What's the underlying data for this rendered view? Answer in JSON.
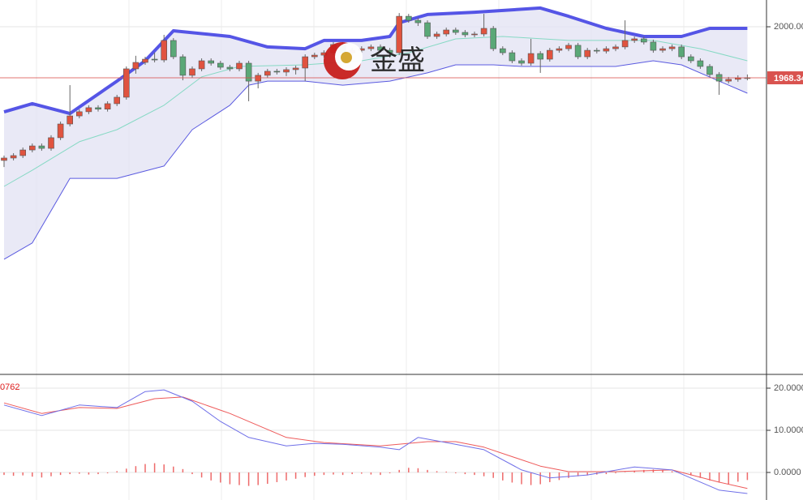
{
  "chart_data": [
    {
      "type": "candlestick",
      "open": [
        1917.1,
        1918.6,
        1920.1,
        1923.6,
        1926.1,
        1924.6,
        1931.2,
        1939.7,
        1944.7,
        1947.3,
        1949.8,
        1948.9,
        1952.3,
        1956.3,
        1973.9,
        1977.9,
        1979.9,
        1979.4,
        1991.5,
        1981.4,
        1969.9,
        1973.9,
        1978.9,
        1977.4,
        1974.9,
        1973.9,
        1977.4,
        1966.3,
        1969.9,
        1972.4,
        1971.9,
        1973.4,
        1974.4,
        1981.4,
        1982.4,
        1983.9,
        1989.0,
        1983.9,
        1985.4,
        1986.4,
        1987.5,
        1985.4,
        1983.9,
        2006.5,
        2004.0,
        2002.5,
        1994.0,
        1995.5,
        1998.0,
        1996.5,
        1995.0,
        1995.5,
        1999.0,
        1986.4,
        1983.9,
        1978.9,
        1977.4,
        1983.4,
        1979.9,
        1985.4,
        1986.4,
        1988.5,
        1981.4,
        1985.4,
        1984.9,
        1986.4,
        1987.5,
        1991.5,
        1992.5,
        1990.5,
        1985.4,
        1986.4,
        1987.5,
        1981.4,
        1978.9,
        1975.4,
        1970.4,
        1966.3,
        1967.4,
        1968.4
      ],
      "high": [
        1920.1,
        1921.6,
        1925.1,
        1927.6,
        1927.6,
        1932.7,
        1941.2,
        1963.8,
        1948.8,
        1951.3,
        1951.3,
        1953.8,
        1957.8,
        1975.4,
        1982.0,
        1981.4,
        1984.0,
        1995.0,
        1993.0,
        1982.9,
        1975.4,
        1980.4,
        1980.4,
        1978.9,
        1976.4,
        1978.9,
        1978.9,
        1971.4,
        1973.9,
        1973.9,
        1974.9,
        1975.9,
        1982.9,
        1983.9,
        1985.4,
        1990.5,
        1990.5,
        1986.9,
        1987.9,
        1989.0,
        1989.0,
        1986.9,
        2008.5,
        2008.0,
        2005.5,
        2004.0,
        1997.0,
        1999.5,
        1999.5,
        1998.0,
        1997.0,
        2008.0,
        2000.5,
        1987.9,
        1985.4,
        1980.4,
        1992.5,
        1984.9,
        1986.9,
        1987.9,
        1990.0,
        1990.0,
        1986.9,
        1986.9,
        1987.9,
        1989.0,
        2004.0,
        1994.0,
        1994.0,
        1992.0,
        1987.9,
        1989.0,
        1989.0,
        1982.9,
        1980.4,
        1976.9,
        1971.9,
        1968.9,
        1969.9,
        1970.4
      ],
      "low": [
        1913.0,
        1917.1,
        1918.6,
        1922.1,
        1923.1,
        1923.1,
        1929.7,
        1938.2,
        1943.2,
        1945.8,
        1947.4,
        1947.4,
        1950.8,
        1954.8,
        1970.9,
        1976.4,
        1977.9,
        1977.9,
        1979.9,
        1966.8,
        1968.4,
        1972.4,
        1975.9,
        1973.4,
        1972.4,
        1972.4,
        1953.8,
        1961.8,
        1968.4,
        1970.4,
        1969.4,
        1970.4,
        1966.3,
        1979.9,
        1980.9,
        1982.4,
        1982.4,
        1982.4,
        1983.9,
        1984.9,
        1983.9,
        1980.9,
        1982.4,
        2002.5,
        2000.5,
        1992.5,
        1992.5,
        1994.0,
        1995.0,
        1993.5,
        1993.5,
        1994.0,
        1984.9,
        1982.4,
        1977.4,
        1975.9,
        1975.9,
        1971.4,
        1978.4,
        1983.9,
        1984.9,
        1979.9,
        1979.9,
        1983.4,
        1983.4,
        1984.9,
        1986.0,
        1990.0,
        1989.0,
        1983.9,
        1983.9,
        1984.9,
        1979.9,
        1977.4,
        1973.9,
        1968.9,
        1957.8,
        1964.8,
        1965.9,
        1966.8
      ],
      "close": [
        1918.6,
        1920.1,
        1923.6,
        1926.1,
        1924.6,
        1931.2,
        1939.7,
        1944.7,
        1947.3,
        1949.8,
        1948.9,
        1952.3,
        1956.3,
        1973.9,
        1977.9,
        1979.9,
        1979.4,
        1991.5,
        1981.4,
        1969.9,
        1973.9,
        1978.9,
        1977.4,
        1974.9,
        1973.9,
        1977.4,
        1966.3,
        1969.9,
        1972.4,
        1971.9,
        1973.4,
        1974.4,
        1981.4,
        1982.4,
        1983.9,
        1989.0,
        1983.9,
        1985.4,
        1986.4,
        1987.5,
        1985.4,
        1983.9,
        2006.5,
        2004.0,
        2002.5,
        1994.0,
        1995.5,
        1998.0,
        1996.5,
        1995.0,
        1995.5,
        1999.0,
        1986.4,
        1983.9,
        1978.9,
        1977.4,
        1983.4,
        1979.9,
        1985.4,
        1986.4,
        1988.5,
        1981.4,
        1985.4,
        1984.9,
        1986.4,
        1987.5,
        1991.5,
        1992.5,
        1990.5,
        1985.4,
        1986.4,
        1987.5,
        1981.4,
        1978.9,
        1975.4,
        1970.4,
        1966.3,
        1967.4,
        1968.4,
        1968.34
      ],
      "up_color": "#e0533f",
      "down_color": "#5aa877",
      "upper_band": {
        "color": "#5555e6",
        "x": [
          0,
          3,
          7,
          12,
          15,
          18,
          24,
          28,
          32,
          34,
          38,
          41,
          42,
          45,
          50,
          57,
          60,
          64,
          68,
          72,
          75,
          79
        ],
        "values": [
          1947.2,
          1952.3,
          1946.2,
          1966.3,
          1978.9,
          1997.5,
          1994.0,
          1987.5,
          1986.4,
          1991.5,
          1991.5,
          1994.0,
          2002.5,
          2007.6,
          2009.0,
          2011.6,
          2006.5,
          1999.0,
          1994.0,
          1994.0,
          1999.0,
          1999.0
        ]
      },
      "middle_band": {
        "color": "#86d9c4",
        "x": [
          0,
          3,
          8,
          12,
          17,
          21,
          25,
          32,
          38,
          43,
          48,
          53,
          60,
          65,
          69,
          74,
          79
        ],
        "values": [
          1901.0,
          1911.0,
          1928.7,
          1936.2,
          1951.3,
          1968.9,
          1975.4,
          1976.4,
          1978.9,
          1983.9,
          1992.5,
          1994.0,
          1991.5,
          1991.5,
          1991.5,
          1986.4,
          1978.9
        ]
      },
      "lower_band": {
        "color": "#5a5ae0",
        "x": [
          0,
          3,
          7,
          12,
          17,
          20,
          24,
          26,
          28,
          32,
          36,
          41,
          45,
          48,
          52,
          55,
          60,
          65,
          69,
          72,
          76,
          79
        ],
        "values": [
          1855.8,
          1865.9,
          1906.0,
          1906.0,
          1913.6,
          1936.2,
          1951.3,
          1963.8,
          1966.3,
          1966.3,
          1963.8,
          1966.3,
          1971.4,
          1976.4,
          1976.4,
          1975.4,
          1975.4,
          1975.4,
          1978.9,
          1976.4,
          1966.3,
          1958.8
        ]
      },
      "band_fill": "#e4e4f4",
      "ylim": [
        1784.4,
        2016.6
      ],
      "yticks": [
        {
          "value": 2000,
          "label": "2000.00"
        }
      ],
      "last_price": {
        "value": 1968.34,
        "label": "1968.34",
        "color": "#d9534f"
      },
      "grid": true
    },
    {
      "type": "macd",
      "value_label": "0762",
      "dif": {
        "color": "#6f6fe8",
        "x": [
          0,
          4,
          8,
          12,
          15,
          17,
          20,
          23,
          26,
          30,
          33,
          36,
          40,
          42,
          44,
          47,
          51,
          55,
          58,
          62,
          67,
          71,
          76,
          79
        ],
        "values": [
          16.0,
          13.5,
          16.0,
          15.4,
          19.2,
          19.6,
          16.9,
          12.1,
          8.3,
          6.3,
          6.9,
          6.7,
          6.0,
          5.4,
          8.3,
          7.1,
          5.4,
          0.6,
          -1.3,
          -0.6,
          1.3,
          0.6,
          -4.2,
          -5.0
        ]
      },
      "dea": {
        "color": "#ee5a5a",
        "x": [
          0,
          4,
          8,
          12,
          16,
          19,
          24,
          30,
          34,
          40,
          45,
          48,
          51,
          57,
          60,
          65,
          71,
          76,
          79
        ],
        "values": [
          16.5,
          14.0,
          15.4,
          15.2,
          17.5,
          17.9,
          14.0,
          8.3,
          7.1,
          6.3,
          7.3,
          7.3,
          6.0,
          1.5,
          0.2,
          0.2,
          0.6,
          -2.3,
          -3.8
        ]
      },
      "histogram": {
        "color": "#ee6a6a",
        "values": [
          -0.6,
          -0.8,
          -0.7,
          -1.0,
          -1.2,
          -0.9,
          -0.6,
          -0.4,
          -0.3,
          -0.5,
          -0.4,
          -0.2,
          0.3,
          0.9,
          1.5,
          2.0,
          2.2,
          1.9,
          1.4,
          0.8,
          -0.4,
          -1.2,
          -1.9,
          -2.4,
          -2.8,
          -3.0,
          -3.2,
          -3.0,
          -2.7,
          -2.3,
          -1.9,
          -1.5,
          -1.1,
          -0.8,
          -0.6,
          -0.5,
          -0.6,
          -0.4,
          -0.3,
          -0.5,
          -0.6,
          -0.2,
          0.6,
          1.1,
          1.0,
          0.6,
          0.3,
          0.2,
          -0.2,
          -0.4,
          -0.6,
          -0.9,
          -1.3,
          -1.9,
          -2.4,
          -2.8,
          -3.0,
          -2.8,
          -2.3,
          -1.8,
          -1.3,
          -0.9,
          -0.7,
          -0.5,
          -0.4,
          -0.2,
          0.1,
          0.4,
          0.6,
          0.7,
          0.5,
          0.3,
          -0.1,
          -0.7,
          -1.3,
          -1.9,
          -2.4,
          -2.8,
          -2.2,
          -1.8
        ]
      },
      "ylim": [
        -6.54,
        23.27
      ],
      "yticks": [
        {
          "value": 20,
          "label": "20.0000"
        },
        {
          "value": 10,
          "label": "10.0000"
        },
        {
          "value": 0,
          "label": "0.0000"
        }
      ],
      "grid": true
    }
  ],
  "watermark": "金盛"
}
